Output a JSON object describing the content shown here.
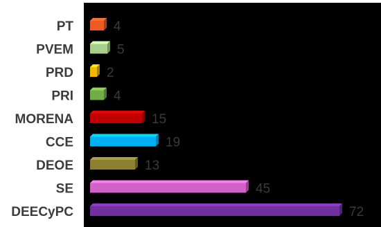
{
  "chart_data": {
    "type": "bar",
    "orientation": "horizontal",
    "categories": [
      "PT",
      "PVEM",
      "PRD",
      "PRI",
      "MORENA",
      "CCE",
      "DEOE",
      "SE",
      "DEECyPC"
    ],
    "values": [
      4,
      5,
      2,
      4,
      15,
      19,
      13,
      45,
      72
    ],
    "colors": [
      "#ee5a24",
      "#a8d08d",
      "#f5b800",
      "#70ad47",
      "#c00000",
      "#00b0f0",
      "#8b8034",
      "#d162c8",
      "#7030a0"
    ],
    "plot_background": "#000000",
    "title": "",
    "xlabel": "",
    "ylabel": "",
    "xlim": [
      0,
      72
    ],
    "grid": false,
    "legend": "none",
    "data_labels": true
  }
}
